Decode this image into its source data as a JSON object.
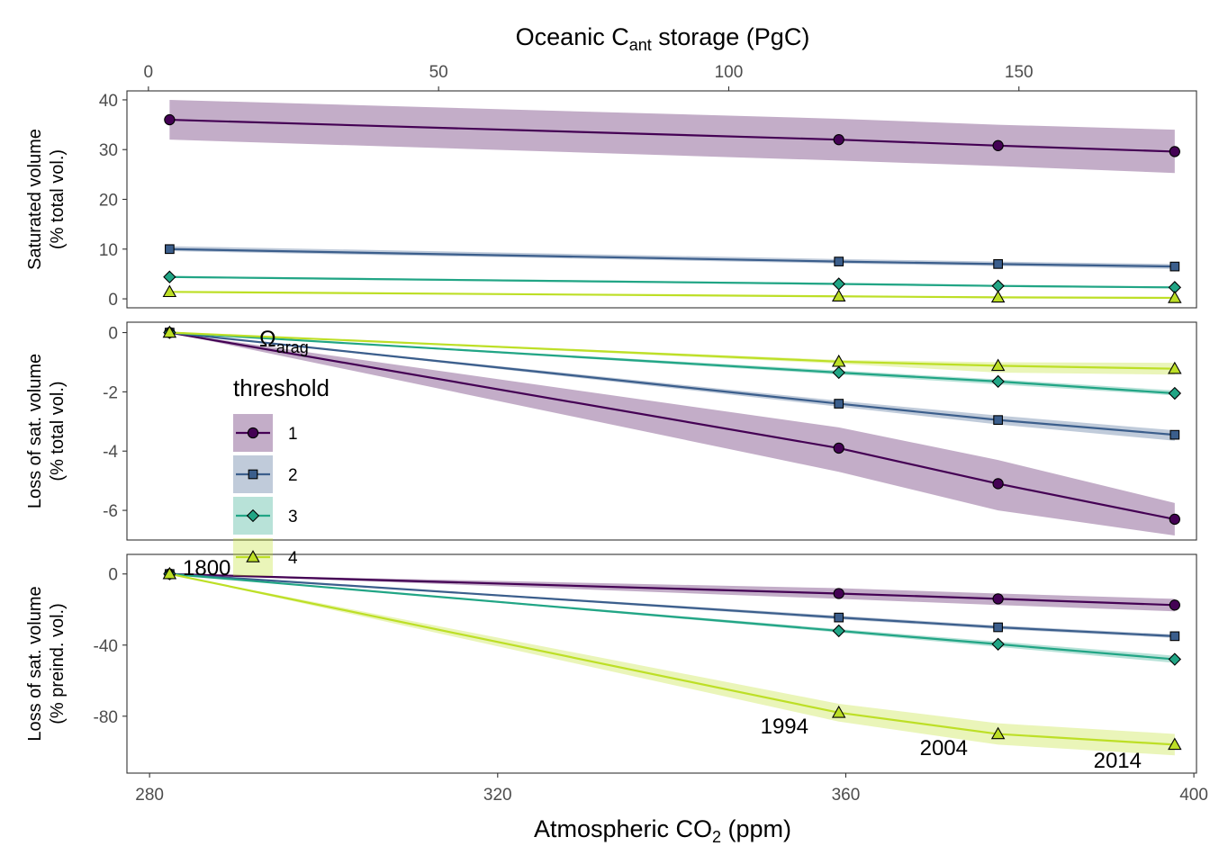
{
  "chart_data": {
    "type": "line",
    "top_axis": {
      "label_pre": "Oceanic C",
      "label_sub": "ant",
      "label_post": " storage (PgC)",
      "ticks": [
        0,
        50,
        100,
        150
      ],
      "tick_labels": [
        "0",
        "50",
        "100",
        "150"
      ],
      "range": [
        -3.7,
        180.6
      ],
      "values": [
        0,
        114,
        142,
        173
      ]
    },
    "x_axis": {
      "label_pre": "Atmospheric CO",
      "label_sub": "2",
      "label_post": " (ppm)",
      "ticks": [
        280,
        320,
        360,
        400
      ],
      "tick_labels": [
        "280",
        "320",
        "360",
        "400"
      ],
      "range": [
        277.4,
        400.3
      ]
    },
    "x": [
      282.3,
      359.2,
      377.5,
      397.8
    ],
    "legend": {
      "title": "threshold",
      "entries": [
        "1",
        "2",
        "3",
        "4"
      ]
    },
    "colors": [
      "#440154",
      "#3b5e8c",
      "#21a585",
      "#bddf26"
    ],
    "shapes": [
      "circle",
      "square",
      "diamond",
      "triangle"
    ],
    "panels": [
      {
        "ylabel_line1": "Saturated volume",
        "ylabel_line2": "(% total vol.)",
        "ylim": [
          -1.8,
          41.8
        ],
        "ticks": [
          0,
          10,
          20,
          30,
          40
        ],
        "tick_labels": [
          "0",
          "10",
          "20",
          "30",
          "40"
        ],
        "series": [
          {
            "name": "1",
            "values": [
              36,
              32,
              30.8,
              29.6
            ],
            "lower": [
              32,
              27.8,
              26.7,
              25.3
            ],
            "upper": [
              40,
              36.2,
              35,
              34
            ]
          },
          {
            "name": "2",
            "values": [
              10,
              7.5,
              7,
              6.5
            ],
            "lower": [
              9.6,
              7.1,
              6.6,
              6.0
            ],
            "upper": [
              10.6,
              8.0,
              7.5,
              7.0
            ]
          },
          {
            "name": "3",
            "values": [
              4.4,
              3.0,
              2.6,
              2.3
            ],
            "lower": [
              4.2,
              2.8,
              2.4,
              2.1
            ],
            "upper": [
              4.6,
              3.2,
              2.8,
              2.5
            ]
          },
          {
            "name": "4",
            "values": [
              1.4,
              0.5,
              0.3,
              0.2
            ],
            "lower": [
              1.3,
              0.4,
              0.2,
              0.1
            ],
            "upper": [
              1.5,
              0.6,
              0.4,
              0.3
            ]
          }
        ]
      },
      {
        "ylabel_line1": "Loss of sat. volume",
        "ylabel_line2": "(% total vol.)",
        "ylim": [
          -7.0,
          0.35
        ],
        "ticks": [
          0,
          -2,
          -4,
          -6
        ],
        "tick_labels": [
          "0",
          "-2",
          "-4",
          "-6"
        ],
        "series": [
          {
            "name": "1",
            "values": [
              0,
              -3.9,
              -5.1,
              -6.3
            ],
            "lower": [
              0,
              -4.7,
              -6.0,
              -6.85
            ],
            "upper": [
              0,
              -3.2,
              -4.3,
              -5.75
            ]
          },
          {
            "name": "2",
            "values": [
              0,
              -2.4,
              -2.95,
              -3.45
            ],
            "lower": [
              0,
              -2.5,
              -3.1,
              -3.65
            ],
            "upper": [
              0,
              -2.3,
              -2.8,
              -3.3
            ]
          },
          {
            "name": "3",
            "values": [
              0,
              -1.35,
              -1.65,
              -2.05
            ],
            "lower": [
              0,
              -1.42,
              -1.75,
              -2.12
            ],
            "upper": [
              0,
              -1.28,
              -1.58,
              -1.95
            ]
          },
          {
            "name": "4",
            "values": [
              0,
              -0.98,
              -1.12,
              -1.22
            ],
            "lower": [
              0,
              -1.05,
              -1.35,
              -1.42
            ],
            "upper": [
              0,
              -0.92,
              -1.0,
              -1.02
            ]
          }
        ]
      },
      {
        "ylabel_line1": "Loss of sat. volume",
        "ylabel_line2": "(% preind. vol.)",
        "ylim": [
          -112,
          11
        ],
        "ticks": [
          0,
          -40,
          -80
        ],
        "tick_labels": [
          "0",
          "-40",
          "-80"
        ],
        "series": [
          {
            "name": "1",
            "values": [
              0,
              -11,
              -14,
              -17.5
            ],
            "lower": [
              0,
              -14,
              -17.5,
              -21
            ],
            "upper": [
              0,
              -8,
              -11,
              -14
            ]
          },
          {
            "name": "2",
            "values": [
              0,
              -24.5,
              -30,
              -35
            ],
            "lower": [
              0,
              -25.5,
              -31,
              -36
            ],
            "upper": [
              0,
              -23.5,
              -29,
              -34
            ]
          },
          {
            "name": "3",
            "values": [
              0,
              -32,
              -39.5,
              -48
            ],
            "lower": [
              0,
              -33,
              -41,
              -50
            ],
            "upper": [
              0,
              -31,
              -38,
              -46
            ]
          },
          {
            "name": "4",
            "values": [
              0,
              -78,
              -90,
              -96
            ],
            "lower": [
              0,
              -83,
              -96,
              -102
            ],
            "upper": [
              0,
              -73,
              -84,
              -90
            ]
          }
        ]
      }
    ],
    "annotations": {
      "omega_symbol": "Ω",
      "omega_sub": "arag",
      "years": [
        "1800",
        "1994",
        "2004",
        "2014"
      ]
    }
  }
}
